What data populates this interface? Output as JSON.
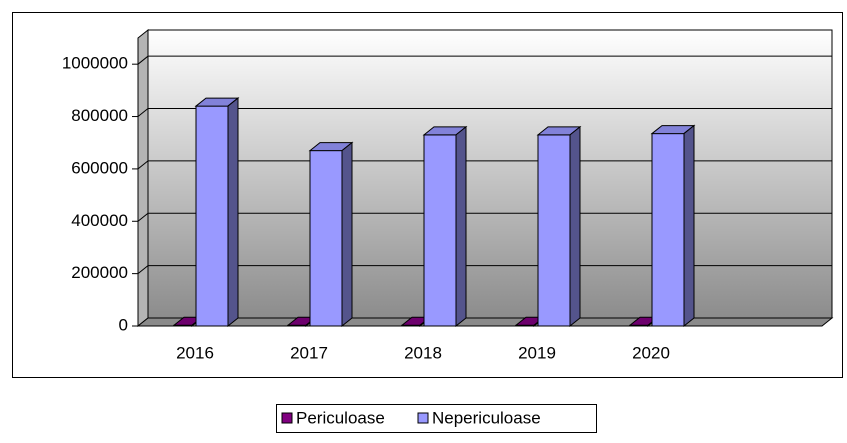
{
  "chart_data": {
    "type": "bar3d",
    "categories": [
      "2016",
      "2017",
      "2018",
      "2019",
      "2020",
      null
    ],
    "series": [
      {
        "name": "Periculoase",
        "color": "#800080",
        "values": [
          3000,
          3000,
          3000,
          3000,
          3000,
          null
        ]
      },
      {
        "name": "Nepericuloase",
        "color": "#9999ff",
        "values": [
          840000,
          670000,
          730000,
          730000,
          735000,
          null
        ]
      }
    ],
    "ylim": [
      0,
      1100000
    ],
    "yticks": [
      0,
      200000,
      400000,
      600000,
      800000,
      1000000
    ],
    "grid": true,
    "legend": "bottom"
  }
}
